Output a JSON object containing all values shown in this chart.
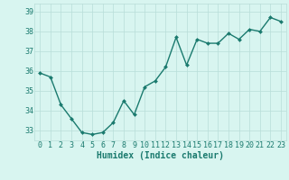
{
  "x": [
    0,
    1,
    2,
    3,
    4,
    5,
    6,
    7,
    8,
    9,
    10,
    11,
    12,
    13,
    14,
    15,
    16,
    17,
    18,
    19,
    20,
    21,
    22,
    23
  ],
  "y": [
    35.9,
    35.7,
    34.3,
    33.6,
    32.9,
    32.8,
    32.9,
    33.4,
    34.5,
    33.8,
    35.2,
    35.5,
    36.2,
    37.7,
    36.3,
    37.6,
    37.4,
    37.4,
    37.9,
    37.6,
    38.1,
    38.0,
    38.7,
    38.5
  ],
  "line_color": "#1a7a6e",
  "marker": "D",
  "marker_size": 2.0,
  "bg_color": "#d8f5f0",
  "grid_color": "#b8ddd8",
  "xlabel": "Humidex (Indice chaleur)",
  "xlabel_fontsize": 7,
  "tick_fontsize": 6,
  "ylim": [
    32.5,
    39.4
  ],
  "xlim": [
    -0.5,
    23.5
  ],
  "yticks": [
    33,
    34,
    35,
    36,
    37,
    38,
    39
  ],
  "xticks": [
    0,
    1,
    2,
    3,
    4,
    5,
    6,
    7,
    8,
    9,
    10,
    11,
    12,
    13,
    14,
    15,
    16,
    17,
    18,
    19,
    20,
    21,
    22,
    23
  ],
  "xtick_labels": [
    "0",
    "1",
    "2",
    "3",
    "4",
    "5",
    "6",
    "7",
    "8",
    "9",
    "10",
    "11",
    "12",
    "13",
    "14",
    "15",
    "16",
    "17",
    "18",
    "19",
    "20",
    "21",
    "22",
    "23"
  ],
  "line_width": 1.0
}
